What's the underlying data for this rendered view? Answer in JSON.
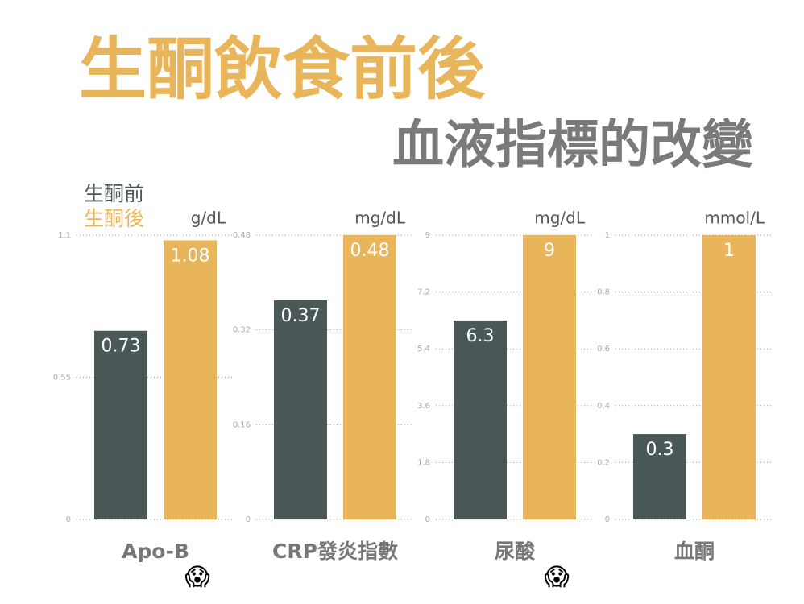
{
  "header": {
    "title": "生酮飲食前後",
    "subtitle": "血液指標的改變"
  },
  "legend": [
    {
      "name": "生酮前",
      "color": "#4b5858"
    },
    {
      "name": "生酮後",
      "color": "#e8b55a"
    }
  ],
  "chart_data": [
    {
      "type": "bar",
      "categories": [
        "Apo-B"
      ],
      "y_label": "g/dL",
      "annotation": "😱",
      "series": [
        {
          "values": [
            0.73
          ]
        },
        {
          "values": [
            1.08
          ]
        }
      ],
      "ylim": [
        0,
        1.1
      ],
      "yticks": [
        0,
        0.55,
        1.1
      ],
      "grid": true
    },
    {
      "type": "bar",
      "categories": [
        "CRP發炎指數"
      ],
      "y_label": "mg/dL",
      "series": [
        {
          "values": [
            0.37
          ]
        },
        {
          "values": [
            0.48
          ]
        }
      ],
      "ylim": [
        0,
        0.48
      ],
      "yticks": [
        0,
        0.16,
        0.32,
        0.48
      ],
      "grid": true
    },
    {
      "type": "bar",
      "categories": [
        "尿酸"
      ],
      "y_label": "mg/dL",
      "annotation": "😱",
      "series": [
        {
          "values": [
            6.3
          ]
        },
        {
          "values": [
            9
          ]
        }
      ],
      "ylim": [
        0,
        9
      ],
      "yticks": [
        0,
        1.8,
        3.6,
        5.4,
        7.2,
        9
      ],
      "grid": true
    },
    {
      "type": "bar",
      "categories": [
        "血酮"
      ],
      "y_label": "mmol/L",
      "series": [
        {
          "values": [
            0.3
          ]
        },
        {
          "values": [
            1
          ]
        }
      ],
      "ylim": [
        0,
        1
      ],
      "yticks": [
        0,
        0.2,
        0.4,
        0.6,
        0.8,
        1
      ],
      "grid": true
    }
  ]
}
